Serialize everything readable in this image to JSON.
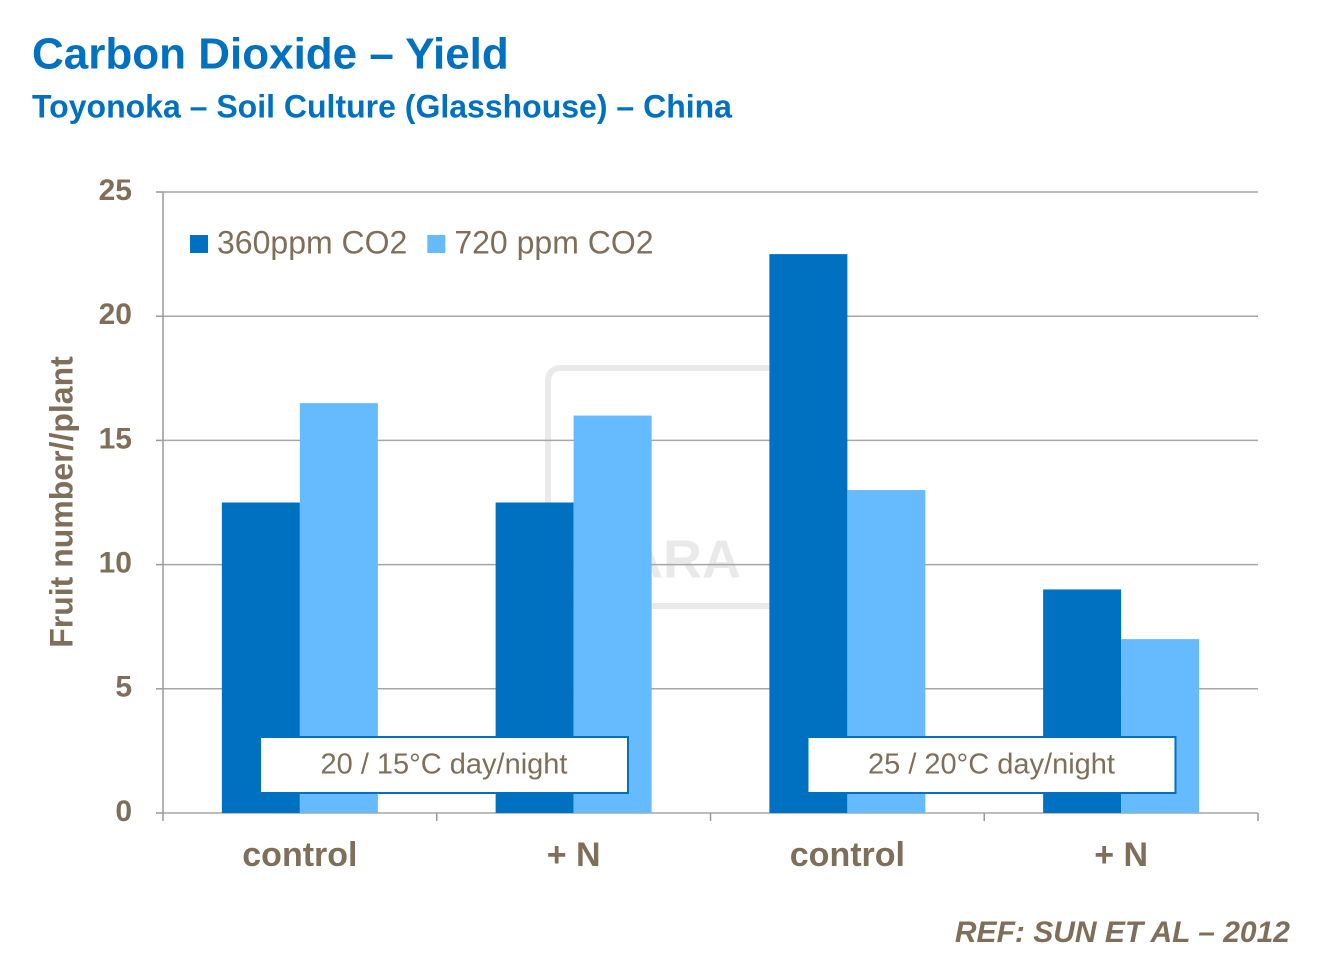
{
  "chart_data": {
    "type": "bar",
    "title": "Carbon Dioxide – Yield",
    "subtitle": "Toyonoka – Soil Culture (Glasshouse) – China",
    "y_label": "Fruit number//plant",
    "categories": [
      "control",
      "+ N",
      "control",
      "+ N"
    ],
    "series": [
      {
        "name": "360ppm CO2",
        "color": "#0070c0",
        "values": [
          12.5,
          12.5,
          22.5,
          9
        ]
      },
      {
        "name": "720 ppm CO2",
        "color": "#66bbff",
        "values": [
          16.5,
          16,
          13,
          7
        ]
      }
    ],
    "ylim": [
      0,
      25
    ],
    "yticks": [
      0,
      5,
      10,
      15,
      20,
      25
    ],
    "grid": true,
    "legend": "top-left",
    "annotations": [
      "20 / 15°C day/night",
      "25 / 20°C day/night"
    ],
    "watermark": "YARA",
    "reference": "REF: SUN ET AL – 2012"
  }
}
